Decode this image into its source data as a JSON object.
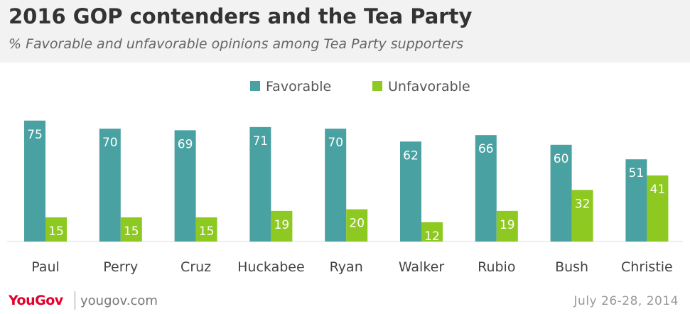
{
  "header": {
    "title": "2016 GOP contenders and the Tea Party",
    "subtitle": "% Favorable and unfavorable opinions among Tea Party supporters"
  },
  "footer": {
    "logo": "YouGov",
    "site": "yougov.com",
    "date": "July 26-28, 2014"
  },
  "chart_data": {
    "type": "bar",
    "categories": [
      "Paul",
      "Perry",
      "Cruz",
      "Huckabee",
      "Ryan",
      "Walker",
      "Rubio",
      "Bush",
      "Christie"
    ],
    "series": [
      {
        "name": "Favorable",
        "color": "#4aa1a1",
        "values": [
          75,
          70,
          69,
          71,
          70,
          62,
          66,
          60,
          51
        ]
      },
      {
        "name": "Unfavorable",
        "color": "#8dc921",
        "values": [
          15,
          15,
          15,
          19,
          20,
          12,
          19,
          32,
          41
        ]
      }
    ],
    "ylim": [
      0,
      80
    ],
    "legend": "top-center",
    "grid": false
  }
}
